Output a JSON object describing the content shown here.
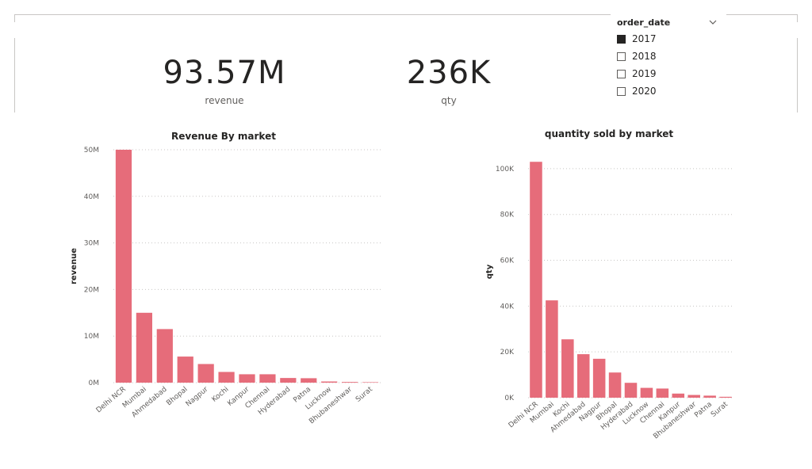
{
  "cards": [
    {
      "value": "93.57M",
      "label": "revenue"
    },
    {
      "value": "236K",
      "label": "qty"
    }
  ],
  "slicer": {
    "title": "order_date",
    "icon": "chevron-down-icon",
    "items": [
      {
        "label": "2017",
        "checked": true
      },
      {
        "label": "2018",
        "checked": false
      },
      {
        "label": "2019",
        "checked": false
      },
      {
        "label": "2020",
        "checked": false
      }
    ]
  },
  "chart_data": [
    {
      "type": "bar",
      "title": "Revenue By market",
      "xlabel": "",
      "ylabel": "revenue",
      "categories": [
        "Delhi NCR",
        "Mumbai",
        "Ahmedabad",
        "Bhopal",
        "Nagpur",
        "Kochi",
        "Kanpur",
        "Chennai",
        "Hyderabad",
        "Patna",
        "Lucknow",
        "Bhubaneshwar",
        "Surat"
      ],
      "values": [
        50000000,
        15000000,
        11500000,
        5600000,
        4000000,
        2300000,
        1800000,
        1800000,
        1000000,
        950000,
        250000,
        150000,
        100000
      ],
      "yticks": [
        0,
        10000000,
        20000000,
        30000000,
        40000000,
        50000000
      ],
      "ytick_labels": [
        "0M",
        "10M",
        "20M",
        "30M",
        "40M",
        "50M"
      ],
      "ylim": [
        0,
        50000000
      ],
      "grid": true,
      "color": "#e66c7a"
    },
    {
      "type": "bar",
      "title": "quantity sold by market",
      "xlabel": "",
      "ylabel": "qty",
      "categories": [
        "Delhi NCR",
        "Mumbai",
        "Kochi",
        "Ahmedabad",
        "Nagpur",
        "Bhopal",
        "Hyderabad",
        "Lucknow",
        "Chennai",
        "Kanpur",
        "Bhubaneshwar",
        "Patna",
        "Surat"
      ],
      "values": [
        103000,
        42500,
        25500,
        19000,
        17000,
        11000,
        6500,
        4300,
        4000,
        1800,
        1200,
        900,
        400
      ],
      "yticks": [
        0,
        20000,
        40000,
        60000,
        80000,
        100000
      ],
      "ytick_labels": [
        "0K",
        "20K",
        "40K",
        "60K",
        "80K",
        "100K"
      ],
      "ylim": [
        0,
        110000
      ],
      "grid": true,
      "color": "#e66c7a"
    }
  ]
}
